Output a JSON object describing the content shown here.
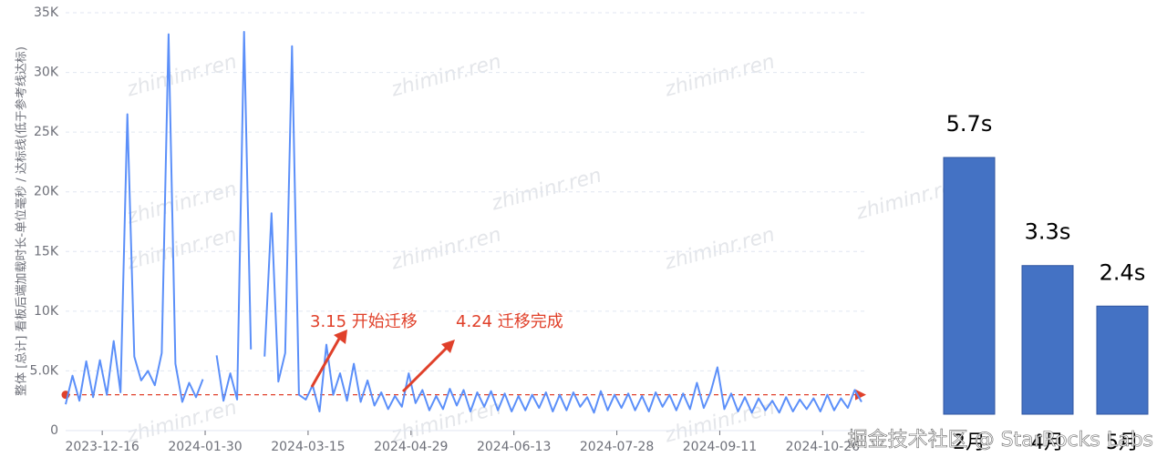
{
  "chart_data": [
    {
      "type": "line",
      "y_label": "整体 [总计] 看板后端加载时长-单位毫秒 / 达标线(低于参考线达标)",
      "watermark": "zhiminr.ren",
      "site_watermark": "掘金技术社区 @ StarRocks Labs",
      "annotations": [
        "3.15 开始迁移",
        "4.24 迁移完成"
      ],
      "annotation_color": "#e0402a",
      "reference": {
        "value": 3000,
        "color": "#e0402a"
      },
      "grid": true,
      "xlim": [
        "2023-11-30",
        "2024-11-14"
      ],
      "xticks": [
        "2023-12-16",
        "2024-01-30",
        "2024-03-15",
        "2024-04-29",
        "2024-06-13",
        "2024-07-28",
        "2024-09-11",
        "2024-10-26"
      ],
      "ylim": [
        0,
        35000
      ],
      "yticks": [
        0,
        {
          "value": 5000,
          "label": "5.0K"
        },
        {
          "value": 10000,
          "label": "10K"
        },
        {
          "value": 15000,
          "label": "15K"
        },
        {
          "value": 20000,
          "label": "20K"
        },
        {
          "value": 25000,
          "label": "25K"
        },
        {
          "value": 30000,
          "label": "30K"
        },
        {
          "value": 35000,
          "label": "35K"
        }
      ],
      "x": [
        "2023-11-30",
        "2023-12-03",
        "2023-12-06",
        "2023-12-09",
        "2023-12-12",
        "2023-12-15",
        "2023-12-18",
        "2023-12-21",
        "2023-12-24",
        "2023-12-27",
        "2023-12-30",
        "2024-01-02",
        "2024-01-05",
        "2024-01-08",
        "2024-01-11",
        "2024-01-14",
        "2024-01-17",
        "2024-01-20",
        "2024-01-23",
        "2024-01-26",
        "2024-01-29",
        "2024-02-01",
        "2024-02-04",
        "2024-02-07",
        "2024-02-10",
        "2024-02-13",
        "2024-02-16",
        "2024-02-19",
        "2024-02-22",
        "2024-02-25",
        "2024-02-28",
        "2024-03-02",
        "2024-03-05",
        "2024-03-08",
        "2024-03-11",
        "2024-03-14",
        "2024-03-17",
        "2024-03-20",
        "2024-03-23",
        "2024-03-26",
        "2024-03-29",
        "2024-04-01",
        "2024-04-04",
        "2024-04-07",
        "2024-04-10",
        "2024-04-13",
        "2024-04-16",
        "2024-04-19",
        "2024-04-22",
        "2024-04-25",
        "2024-04-28",
        "2024-05-01",
        "2024-05-04",
        "2024-05-07",
        "2024-05-10",
        "2024-05-13",
        "2024-05-16",
        "2024-05-19",
        "2024-05-22",
        "2024-05-25",
        "2024-05-28",
        "2024-05-31",
        "2024-06-03",
        "2024-06-06",
        "2024-06-09",
        "2024-06-12",
        "2024-06-15",
        "2024-06-18",
        "2024-06-21",
        "2024-06-24",
        "2024-06-27",
        "2024-06-30",
        "2024-07-03",
        "2024-07-06",
        "2024-07-09",
        "2024-07-12",
        "2024-07-15",
        "2024-07-18",
        "2024-07-21",
        "2024-07-24",
        "2024-07-27",
        "2024-07-30",
        "2024-08-02",
        "2024-08-05",
        "2024-08-08",
        "2024-08-11",
        "2024-08-14",
        "2024-08-17",
        "2024-08-20",
        "2024-08-23",
        "2024-08-26",
        "2024-08-29",
        "2024-09-01",
        "2024-09-04",
        "2024-09-07",
        "2024-09-10",
        "2024-09-13",
        "2024-09-16",
        "2024-09-19",
        "2024-09-22",
        "2024-09-25",
        "2024-09-28",
        "2024-10-01",
        "2024-10-04",
        "2024-10-07",
        "2024-10-10",
        "2024-10-13",
        "2024-10-16",
        "2024-10-19",
        "2024-10-22",
        "2024-10-25",
        "2024-10-28",
        "2024-10-31",
        "2024-11-03",
        "2024-11-06",
        "2024-11-09",
        "2024-11-12"
      ],
      "series": [
        {
          "color": "#5b8ff9",
          "values": [
            2200,
            4600,
            2500,
            5800,
            2800,
            5900,
            3000,
            7500,
            3200,
            26500,
            6200,
            4200,
            5000,
            3800,
            6500,
            33200,
            5600,
            2400,
            4000,
            2800,
            4300,
            null,
            6300,
            2500,
            4800,
            2600,
            33400,
            6800,
            null,
            6200,
            18200,
            4100,
            6500,
            32200,
            3000,
            2600,
            3800,
            1600,
            7200,
            3000,
            4800,
            2500,
            5600,
            2400,
            4200,
            2100,
            3200,
            1800,
            2900,
            2000,
            4800,
            2300,
            3400,
            1700,
            2900,
            1800,
            3500,
            2100,
            3400,
            1600,
            3200,
            2000,
            3300,
            1700,
            3100,
            1600,
            2900,
            1700,
            3000,
            1900,
            3200,
            1600,
            3000,
            1700,
            3200,
            2000,
            2800,
            1500,
            3300,
            1700,
            3000,
            1900,
            3100,
            1700,
            2900,
            1600,
            3200,
            2000,
            3000,
            1700,
            3100,
            1800,
            4000,
            1900,
            3200,
            5300,
            1800,
            3100,
            1600,
            2800,
            1500,
            2700,
            1700,
            2500,
            1500,
            2800,
            1600,
            2600,
            1800,
            2700,
            1600,
            3000,
            1700,
            2700,
            1900,
            3400,
            2400
          ]
        }
      ]
    },
    {
      "type": "bar",
      "categories": [
        "2月",
        "4月",
        "5月"
      ],
      "values": [
        5.7,
        3.3,
        2.4
      ],
      "value_labels": [
        "5.7s",
        "3.3s",
        "2.4s"
      ],
      "color": "#4472c4"
    }
  ]
}
